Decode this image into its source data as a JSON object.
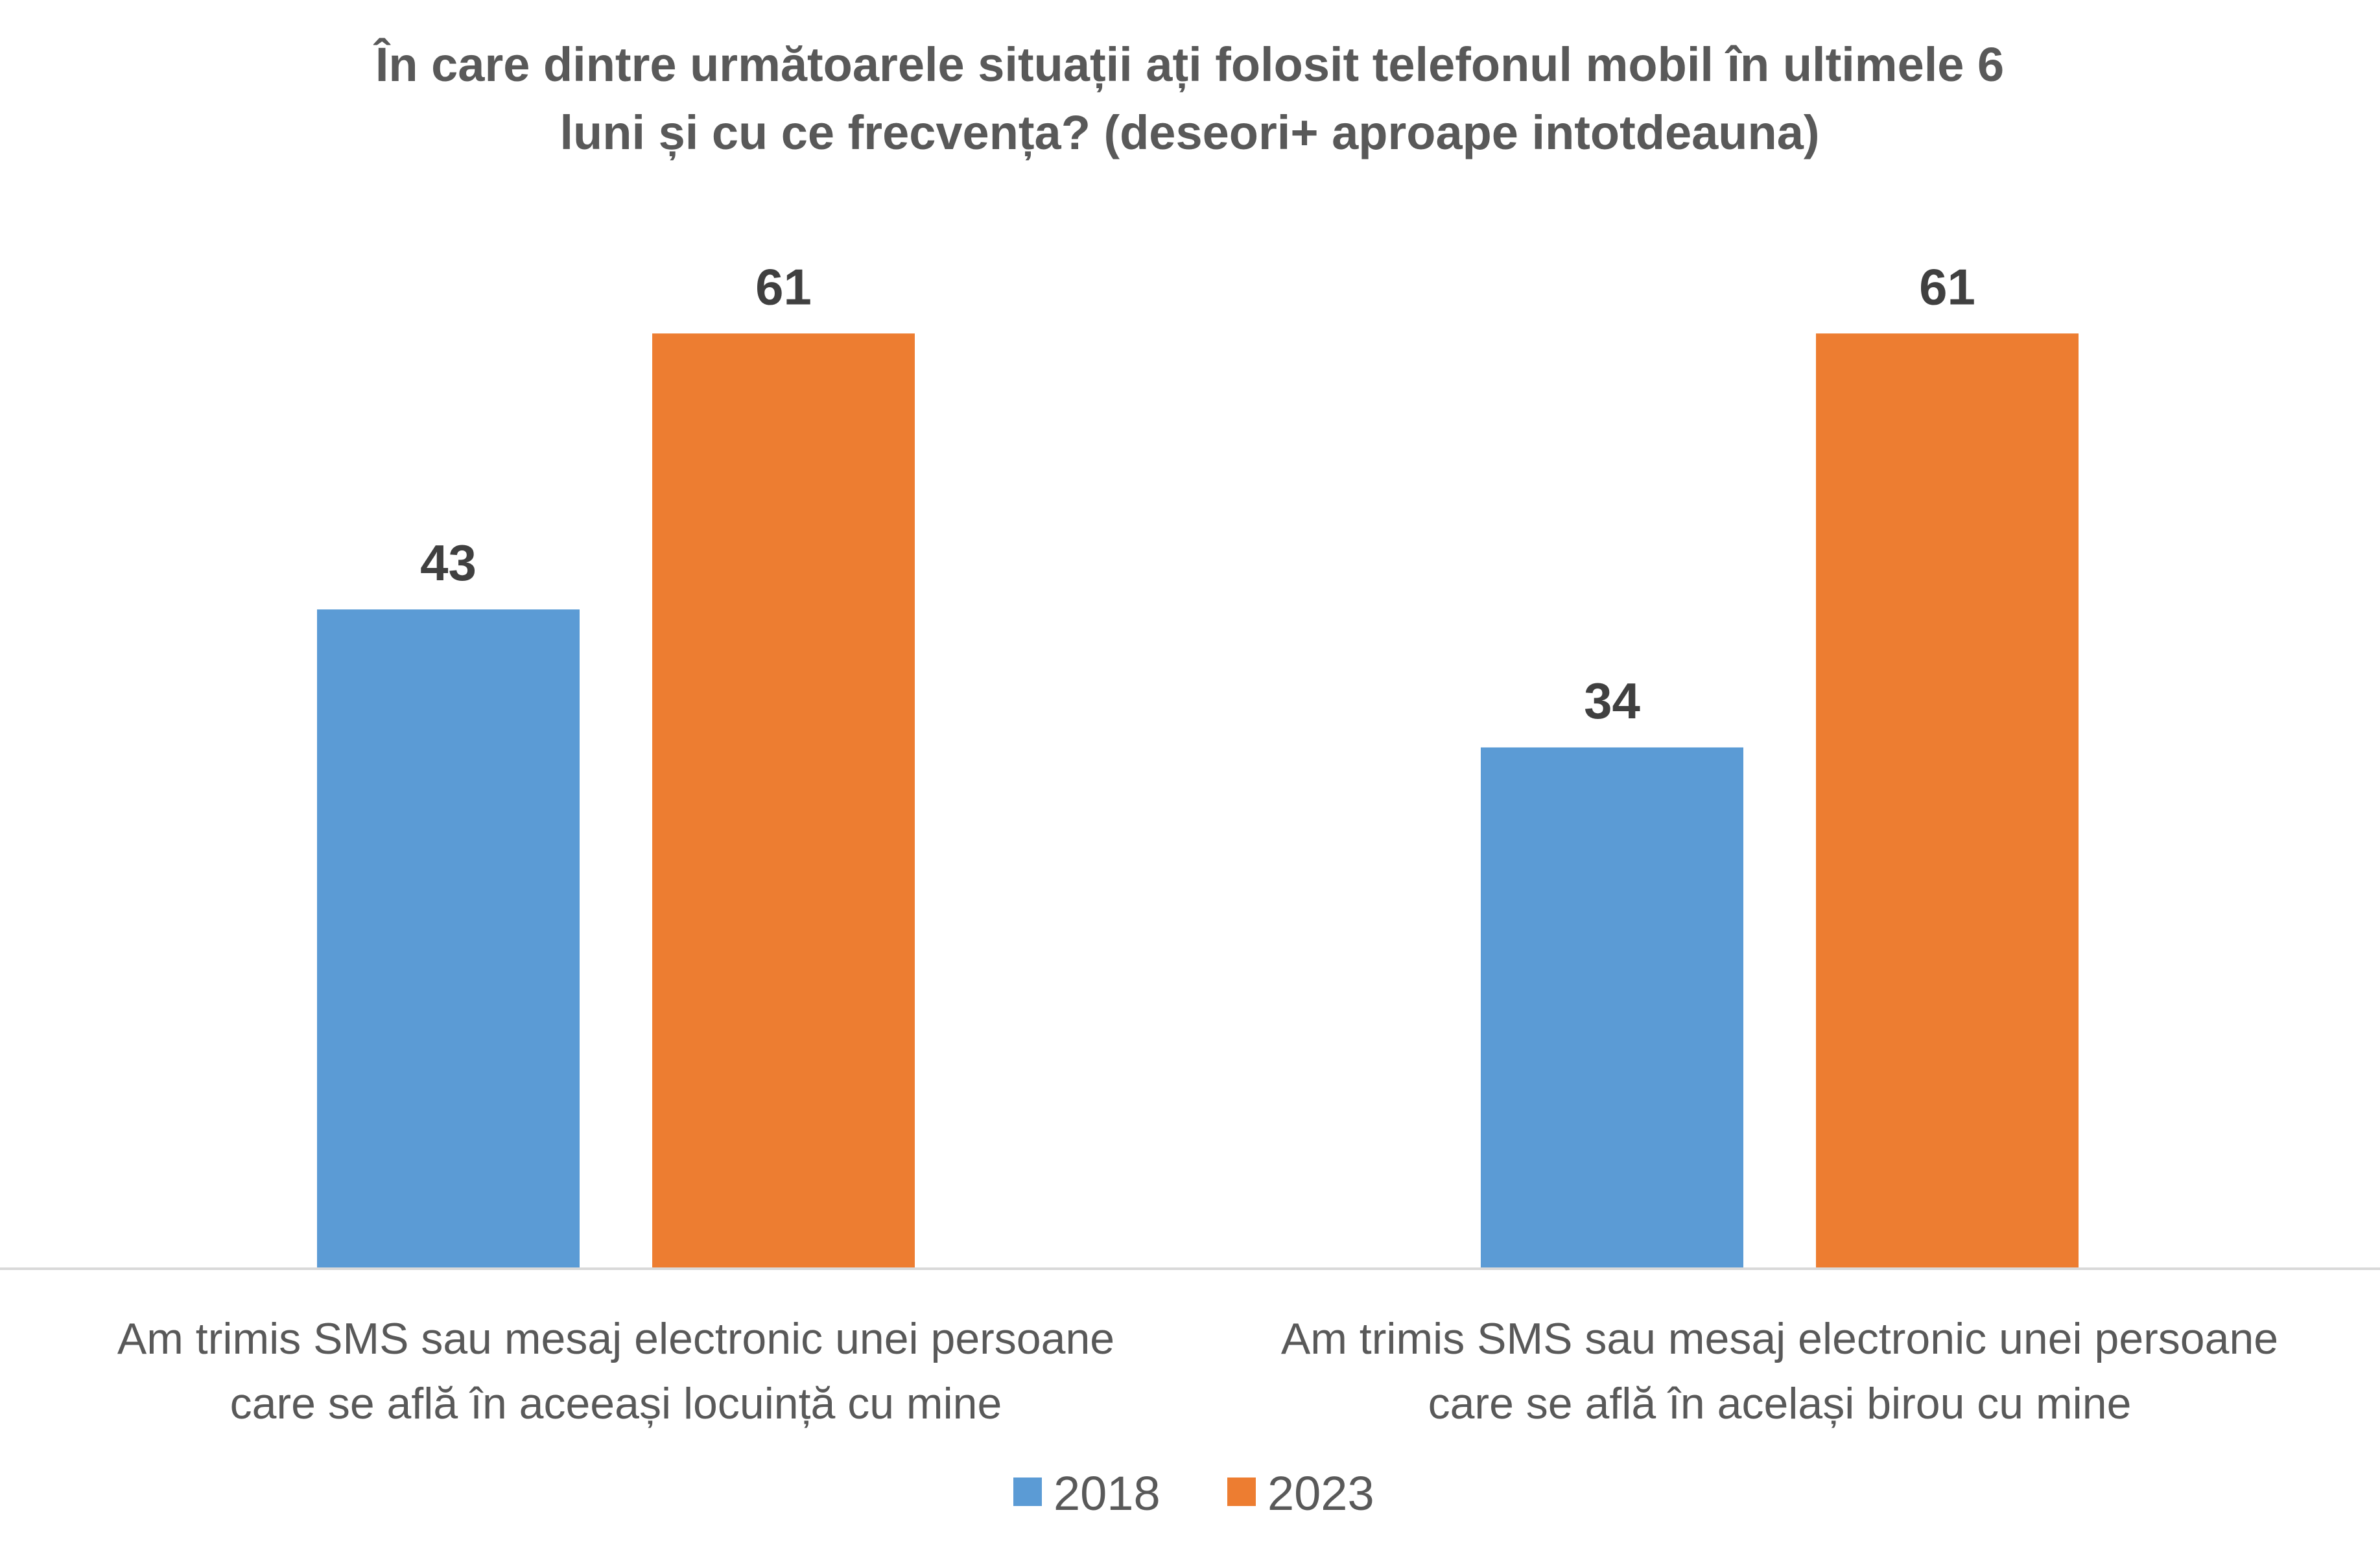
{
  "chart_data": {
    "type": "bar",
    "title": [
      "În care dintre următoarele situații ați folosit telefonul mobil în ultimele 6",
      "luni și cu ce frecvența? (deseori+ aproape intotdeauna)"
    ],
    "categories": [
      [
        "Am trimis SMS sau mesaj electronic unei persoane",
        "care se află în aceeași locuință cu mine"
      ],
      [
        "Am trimis SMS sau mesaj electronic unei persoane",
        "care se află în același birou cu mine"
      ]
    ],
    "series": [
      {
        "name": "2018",
        "color": "#5B9BD5",
        "values": [
          43,
          34
        ]
      },
      {
        "name": "2023",
        "color": "#ED7D31",
        "values": [
          61,
          61
        ]
      }
    ],
    "ylim": [
      0,
      70
    ],
    "show_data_labels": true,
    "grid": false,
    "legend_position": "bottom"
  }
}
